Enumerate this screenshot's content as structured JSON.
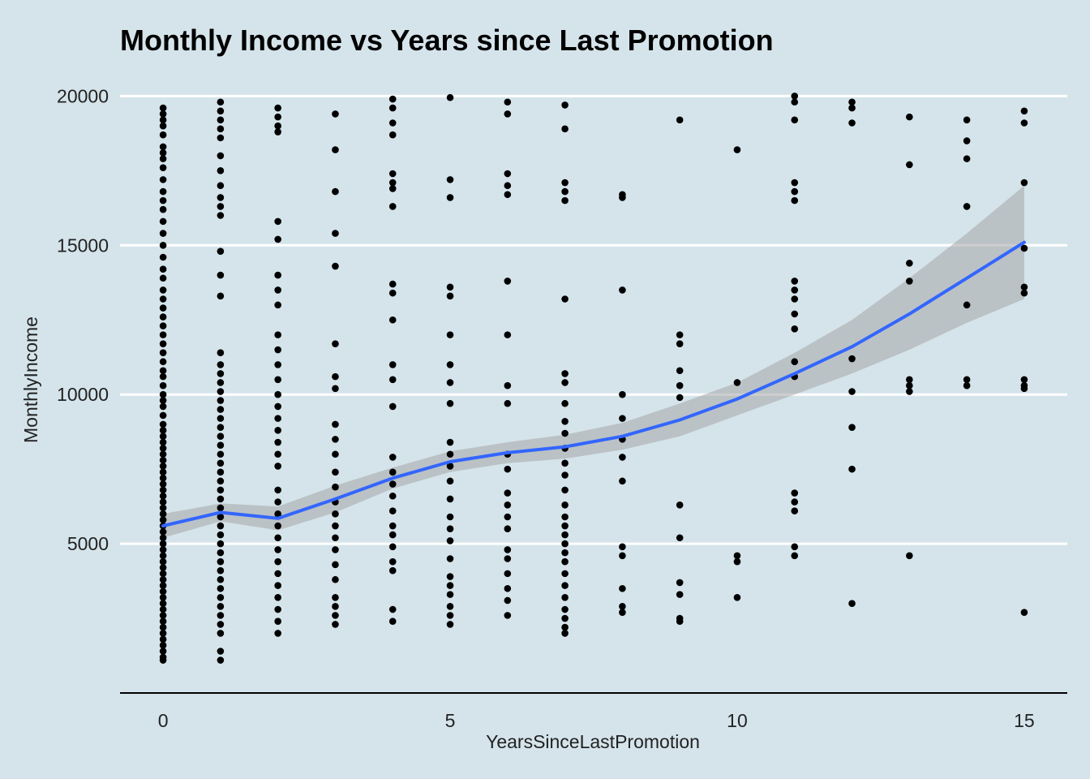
{
  "chart_data": {
    "type": "scatter",
    "title": "Monthly Income vs Years since Last Promotion",
    "xlabel": "YearsSinceLastPromotion",
    "ylabel": "MonthlyIncome",
    "xlim": [
      -0.75,
      15.75
    ],
    "ylim": [
      0,
      20500
    ],
    "x_ticks": [
      0,
      5,
      10,
      15
    ],
    "y_ticks": [
      5000,
      10000,
      15000,
      20000
    ],
    "grid": "horizontal major lines",
    "legend": "none",
    "colors": {
      "points": "#000000",
      "smooth_line": "#3366ff",
      "band": "#a6a6a6",
      "background": "#d5e4eb",
      "grid": "#ffffff"
    },
    "points": [
      {
        "x": 0,
        "y": [
          19600,
          19400,
          19200,
          19000,
          18700,
          18300,
          18100,
          17900,
          17600,
          17200,
          16800,
          16500,
          16200,
          15800,
          15400,
          15000,
          14600,
          14200,
          13900,
          13500,
          13200,
          12900,
          12600,
          12300,
          12000,
          11700,
          11400,
          11100,
          10800,
          10600,
          10300,
          10000,
          9800,
          9600,
          9300,
          9000,
          8800,
          8600,
          8400,
          8200,
          8000,
          7800,
          7600,
          7400,
          7200,
          7000,
          6800,
          6600,
          6400,
          6200,
          6000,
          5800,
          5600,
          5400,
          5200,
          5000,
          4800,
          4600,
          4400,
          4200,
          4000,
          3800,
          3600,
          3400,
          3200,
          3000,
          2800,
          2600,
          2400,
          2200,
          2000,
          1800,
          1600,
          1400,
          1200,
          1100
        ]
      },
      {
        "x": 1,
        "y": [
          19800,
          19500,
          19200,
          18900,
          18600,
          18000,
          17500,
          17000,
          16600,
          16300,
          16000,
          14800,
          14000,
          13300,
          11400,
          11000,
          10700,
          10400,
          10100,
          9800,
          9500,
          9200,
          8900,
          8600,
          8300,
          8000,
          7700,
          7400,
          7100,
          6800,
          6500,
          6200,
          5900,
          5600,
          5300,
          5000,
          4700,
          4400,
          4100,
          3800,
          3500,
          3200,
          2900,
          2600,
          2300,
          2000,
          1400,
          1100
        ]
      },
      {
        "x": 2,
        "y": [
          19600,
          19300,
          19000,
          18800,
          15800,
          15200,
          14000,
          13500,
          13000,
          12000,
          11500,
          11000,
          10500,
          10000,
          9600,
          9200,
          8800,
          8400,
          8000,
          7600,
          6800,
          6400,
          6000,
          5600,
          5200,
          4800,
          4400,
          4000,
          3600,
          3200,
          2800,
          2400,
          2000
        ]
      },
      {
        "x": 3,
        "y": [
          19400,
          18200,
          16800,
          15400,
          14300,
          11700,
          10600,
          10200,
          9000,
          8500,
          8000,
          7400,
          6900,
          6400,
          6000,
          5600,
          5200,
          4800,
          4300,
          3800,
          3200,
          2900,
          2600,
          2300
        ]
      },
      {
        "x": 4,
        "y": [
          19900,
          19600,
          19100,
          18700,
          17400,
          17100,
          16900,
          16300,
          13700,
          13400,
          12500,
          11000,
          10500,
          9600,
          7900,
          7400,
          7000,
          6600,
          6100,
          5600,
          5300,
          4900,
          4400,
          4100,
          2800,
          2400
        ]
      },
      {
        "x": 5,
        "y": [
          19950,
          17200,
          16600,
          13600,
          13300,
          12000,
          11000,
          10400,
          9700,
          8400,
          8000,
          7600,
          7100,
          6500,
          5900,
          5500,
          5100,
          4500,
          3900,
          3600,
          3300,
          2900,
          2600,
          2300
        ]
      },
      {
        "x": 6,
        "y": [
          19800,
          19400,
          17400,
          17000,
          16700,
          13800,
          12000,
          10300,
          9700,
          8000,
          7500,
          6700,
          6300,
          5900,
          5500,
          4800,
          4500,
          4000,
          3500,
          3100,
          2600
        ]
      },
      {
        "x": 7,
        "y": [
          19700,
          18900,
          17100,
          16800,
          16500,
          13200,
          10700,
          10400,
          9700,
          9100,
          8700,
          8200,
          7700,
          7300,
          6800,
          6300,
          5900,
          5600,
          5300,
          5000,
          4700,
          4400,
          4000,
          3600,
          3200,
          2800,
          2500,
          2200,
          2000
        ]
      },
      {
        "x": 8,
        "y": [
          16700,
          16600,
          13500,
          10000,
          9200,
          8500,
          7900,
          7100,
          4900,
          4600,
          3500,
          2900,
          2700
        ]
      },
      {
        "x": 9,
        "y": [
          19200,
          12000,
          11700,
          10800,
          10300,
          9900,
          6300,
          5200,
          3700,
          3300,
          2500,
          2400
        ]
      },
      {
        "x": 10,
        "y": [
          18200,
          10400,
          4600,
          4400,
          3200
        ]
      },
      {
        "x": 11,
        "y": [
          20000,
          19800,
          19200,
          17100,
          16800,
          16500,
          13800,
          13500,
          13200,
          12700,
          12200,
          11100,
          10600,
          6700,
          6400,
          6100,
          4900,
          4600
        ]
      },
      {
        "x": 12,
        "y": [
          19800,
          19600,
          19100,
          11200,
          10100,
          8900,
          7500,
          3000
        ]
      },
      {
        "x": 13,
        "y": [
          19300,
          17700,
          14400,
          13800,
          10500,
          10300,
          10100,
          4600
        ]
      },
      {
        "x": 14,
        "y": [
          19200,
          18500,
          17900,
          16300,
          13000,
          10500,
          10300
        ]
      },
      {
        "x": 15,
        "y": [
          19500,
          19100,
          17100,
          14900,
          13600,
          13400,
          10500,
          10300,
          10200,
          2700
        ]
      }
    ],
    "smooth_line": {
      "x": [
        0,
        1,
        2,
        3,
        4,
        5,
        6,
        7,
        8,
        9,
        10,
        11,
        12,
        13,
        14,
        15
      ],
      "y": [
        5600,
        6050,
        5850,
        6500,
        7200,
        7750,
        8050,
        8250,
        8600,
        9150,
        9850,
        10700,
        11600,
        12700,
        13900,
        15100
      ],
      "ylow": [
        5200,
        5750,
        5450,
        6050,
        6850,
        7400,
        7700,
        7850,
        8150,
        8600,
        9300,
        10000,
        10700,
        11500,
        12400,
        13200
      ],
      "yhigh": [
        6000,
        6350,
        6250,
        6950,
        7550,
        8100,
        8400,
        8650,
        9050,
        9700,
        10400,
        11400,
        12500,
        13900,
        15400,
        17000
      ]
    }
  }
}
